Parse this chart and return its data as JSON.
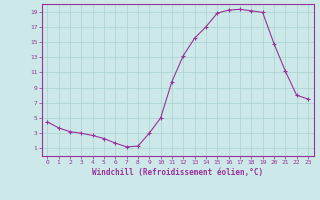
{
  "x": [
    0,
    1,
    2,
    3,
    4,
    5,
    6,
    7,
    8,
    9,
    10,
    11,
    12,
    13,
    14,
    15,
    16,
    17,
    18,
    19,
    20,
    21,
    22,
    23
  ],
  "y": [
    4.5,
    3.7,
    3.2,
    3.0,
    2.7,
    2.3,
    1.7,
    1.2,
    1.3,
    3.0,
    5.0,
    9.8,
    13.2,
    15.5,
    17.0,
    18.8,
    19.2,
    19.3,
    19.1,
    18.9,
    14.8,
    11.2,
    8.0,
    7.5
  ],
  "line_color": "#993399",
  "marker": "+",
  "marker_size": 3,
  "bg_color": "#cce8e8",
  "grid_color": "#aad0d0",
  "xlabel": "Windchill (Refroidissement éolien,°C)",
  "xlabel_color": "#993399",
  "tick_color": "#993399",
  "ylim": [
    0,
    20
  ],
  "xlim": [
    -0.5,
    23.5
  ],
  "yticks": [
    1,
    3,
    5,
    7,
    9,
    11,
    13,
    15,
    17,
    19
  ],
  "xticks": [
    0,
    1,
    2,
    3,
    4,
    5,
    6,
    7,
    8,
    9,
    10,
    11,
    12,
    13,
    14,
    15,
    16,
    17,
    18,
    19,
    20,
    21,
    22,
    23
  ]
}
